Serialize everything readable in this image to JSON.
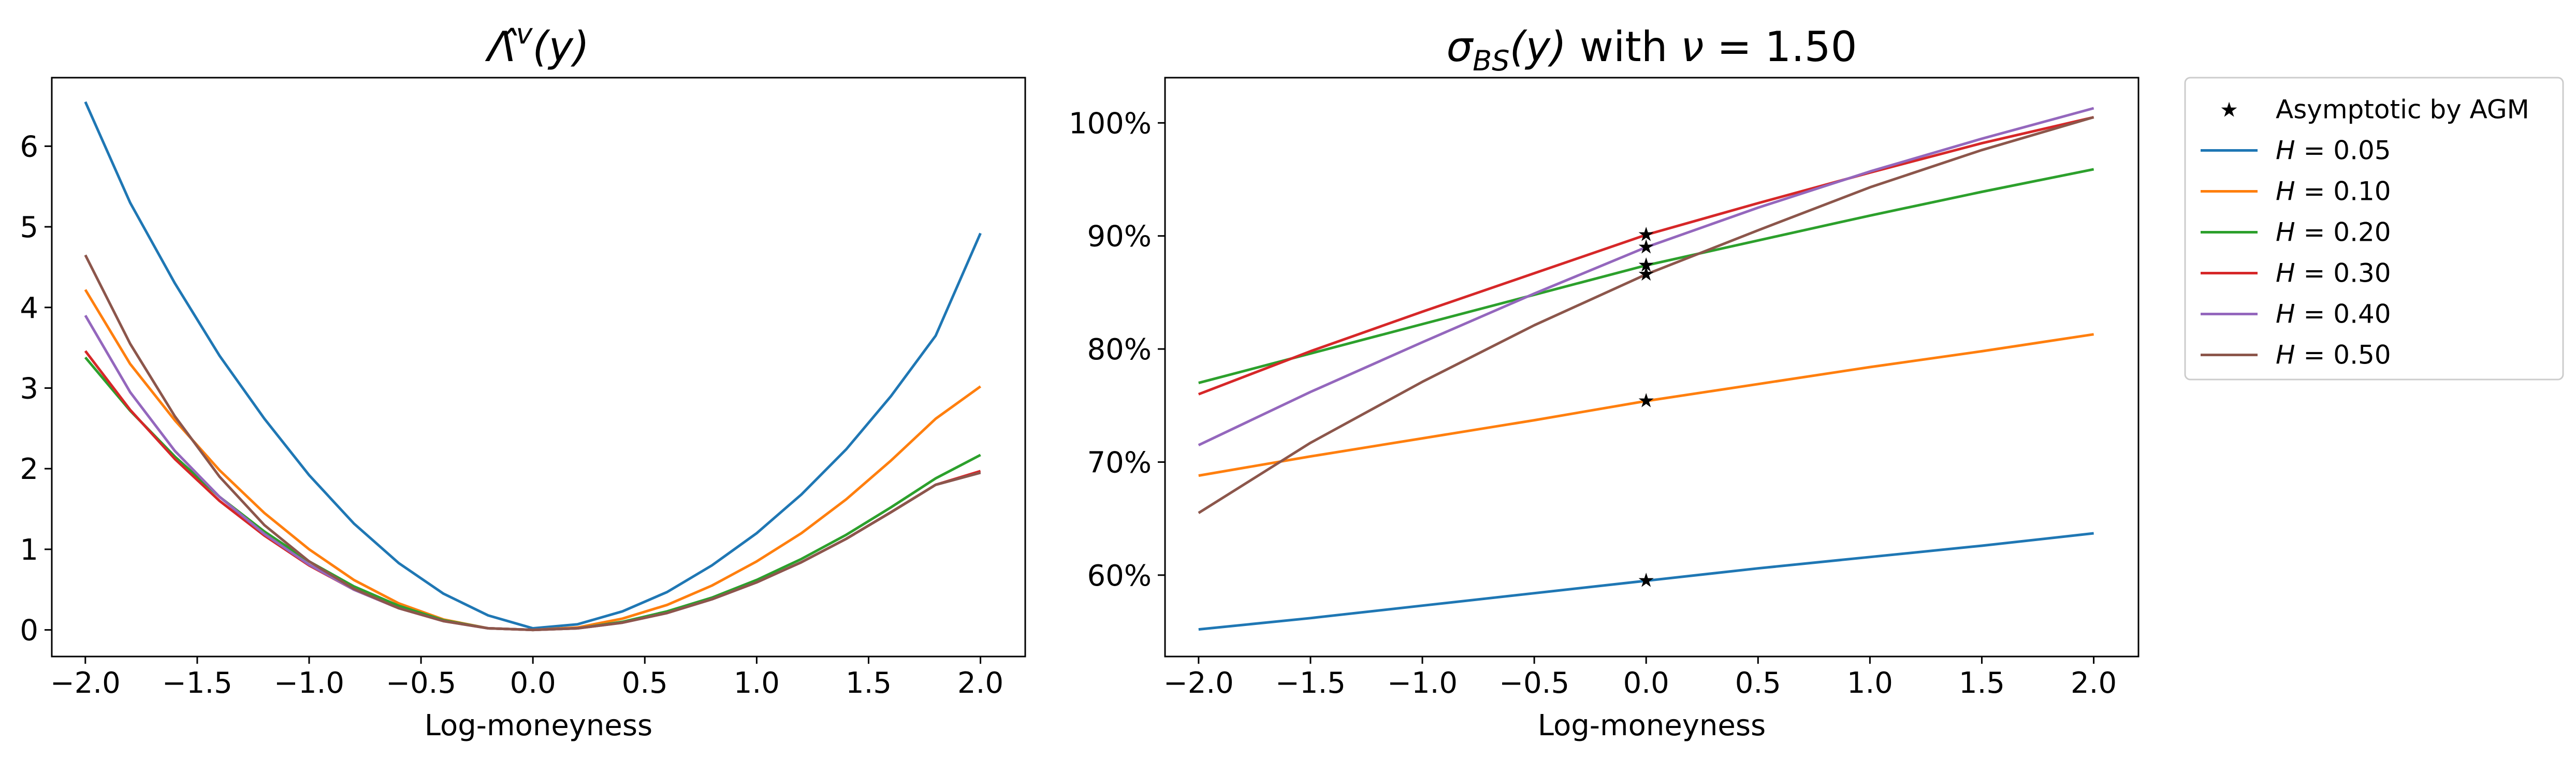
{
  "chart_data": [
    {
      "type": "line",
      "title": "Λ̂ᵛ(y)",
      "title_math": {
        "base": "Λ̂",
        "sup": "v",
        "arg": "(y)"
      },
      "xlabel": "Log-moneyness",
      "ylabel": "",
      "xlim": [
        -2.15,
        2.2
      ],
      "ylim": [
        -0.33,
        6.85
      ],
      "xticks": [
        -2.0,
        -1.5,
        -1.0,
        -0.5,
        0.0,
        0.5,
        1.0,
        1.5,
        2.0
      ],
      "xtick_labels": [
        "−2.0",
        "−1.5",
        "−1.0",
        "−0.5",
        "0.0",
        "0.5",
        "1.0",
        "1.5",
        "2.0"
      ],
      "yticks": [
        0,
        1,
        2,
        3,
        4,
        5,
        6
      ],
      "ytick_labels": [
        "0",
        "1",
        "2",
        "3",
        "4",
        "5",
        "6"
      ],
      "grid": false,
      "x": [
        -2.0,
        -1.8,
        -1.6,
        -1.4,
        -1.2,
        -1.0,
        -0.8,
        -0.6,
        -0.4,
        -0.2,
        0.0,
        0.2,
        0.4,
        0.6,
        0.8,
        1.0,
        1.2,
        1.4,
        1.6,
        1.8,
        2.0
      ],
      "series": [
        {
          "name": "H = 0.05",
          "color": "#1f77b4",
          "values": [
            6.55,
            5.3,
            4.3,
            3.4,
            2.62,
            1.92,
            1.32,
            0.83,
            0.45,
            0.18,
            0.02,
            0.07,
            0.23,
            0.47,
            0.8,
            1.2,
            1.68,
            2.24,
            2.9,
            3.65,
            4.92
          ]
        },
        {
          "name": "H = 0.10",
          "color": "#ff7f0e",
          "values": [
            4.22,
            3.3,
            2.6,
            1.98,
            1.45,
            1.0,
            0.62,
            0.33,
            0.13,
            0.02,
            0.0,
            0.03,
            0.14,
            0.31,
            0.55,
            0.85,
            1.2,
            1.62,
            2.1,
            2.62,
            3.02
          ]
        },
        {
          "name": "H = 0.20",
          "color": "#2ca02c",
          "values": [
            3.38,
            2.72,
            2.15,
            1.65,
            1.22,
            0.85,
            0.54,
            0.3,
            0.12,
            0.02,
            0.0,
            0.02,
            0.1,
            0.23,
            0.4,
            0.62,
            0.88,
            1.18,
            1.52,
            1.88,
            2.17
          ]
        },
        {
          "name": "H = 0.30",
          "color": "#d62728",
          "values": [
            3.46,
            2.73,
            2.12,
            1.6,
            1.17,
            0.8,
            0.5,
            0.27,
            0.11,
            0.02,
            0.0,
            0.02,
            0.09,
            0.21,
            0.38,
            0.59,
            0.84,
            1.13,
            1.46,
            1.8,
            1.97
          ]
        },
        {
          "name": "H = 0.40",
          "color": "#9467bd",
          "values": [
            3.9,
            2.95,
            2.22,
            1.65,
            1.19,
            0.81,
            0.5,
            0.27,
            0.11,
            0.02,
            0.0,
            0.02,
            0.09,
            0.21,
            0.38,
            0.59,
            0.84,
            1.13,
            1.46,
            1.8,
            1.95
          ]
        },
        {
          "name": "H = 0.50",
          "color": "#8c564b",
          "values": [
            4.65,
            3.55,
            2.65,
            1.9,
            1.3,
            0.85,
            0.51,
            0.27,
            0.11,
            0.02,
            0.0,
            0.02,
            0.09,
            0.21,
            0.38,
            0.59,
            0.84,
            1.13,
            1.46,
            1.8,
            1.95
          ]
        }
      ]
    },
    {
      "type": "line",
      "title": "σBS(y) with ν = 1.50",
      "title_math": {
        "base": "σ",
        "sub": "BS",
        "arg": "(y)",
        "rest": " with ",
        "nu": "ν",
        "eq": " = 1.50"
      },
      "xlabel": "Log-moneyness",
      "ylabel": "",
      "xlim": [
        -2.15,
        2.2
      ],
      "ylim": [
        0.528,
        1.04
      ],
      "xticks": [
        -2.0,
        -1.5,
        -1.0,
        -0.5,
        0.0,
        0.5,
        1.0,
        1.5,
        2.0
      ],
      "xtick_labels": [
        "−2.0",
        "−1.5",
        "−1.0",
        "−0.5",
        "0.0",
        "0.5",
        "1.0",
        "1.5",
        "2.0"
      ],
      "yticks": [
        0.6,
        0.7,
        0.8,
        0.9,
        1.0
      ],
      "ytick_labels": [
        "60%",
        "70%",
        "80%",
        "90%",
        "100%"
      ],
      "grid": false,
      "legend_placement": "outside-right",
      "x": [
        -2.0,
        -1.5,
        -1.0,
        -0.5,
        0.0,
        0.5,
        1.0,
        1.5,
        2.0
      ],
      "series": [
        {
          "name": "H = 0.05",
          "color": "#1f77b4",
          "values": [
            0.552,
            0.562,
            0.573,
            0.584,
            0.595,
            0.606,
            0.616,
            0.626,
            0.637
          ]
        },
        {
          "name": "H = 0.10",
          "color": "#ff7f0e",
          "values": [
            0.688,
            0.705,
            0.721,
            0.737,
            0.754,
            0.769,
            0.784,
            0.798,
            0.813
          ]
        },
        {
          "name": "H = 0.20",
          "color": "#2ca02c",
          "values": [
            0.77,
            0.796,
            0.822,
            0.848,
            0.874,
            0.896,
            0.918,
            0.939,
            0.959
          ]
        },
        {
          "name": "H = 0.30",
          "color": "#d62728",
          "values": [
            0.76,
            0.798,
            0.833,
            0.867,
            0.901,
            0.929,
            0.956,
            0.982,
            1.005
          ]
        },
        {
          "name": "H = 0.40",
          "color": "#9467bd",
          "values": [
            0.715,
            0.762,
            0.806,
            0.849,
            0.89,
            0.925,
            0.957,
            0.986,
            1.013
          ]
        },
        {
          "name": "H = 0.50",
          "color": "#8c564b",
          "values": [
            0.655,
            0.717,
            0.771,
            0.821,
            0.866,
            0.905,
            0.943,
            0.976,
            1.005
          ]
        }
      ],
      "markers": {
        "name": "Asymptotic by AGM",
        "symbol": "star",
        "color": "#000000",
        "x": [
          0.0,
          0.0,
          0.0,
          0.0,
          0.0,
          0.0
        ],
        "y": [
          0.595,
          0.754,
          0.874,
          0.901,
          0.89,
          0.866
        ]
      }
    }
  ]
}
